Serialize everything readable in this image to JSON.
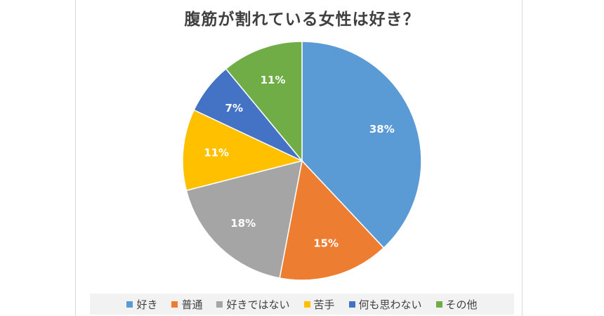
{
  "chart_data": {
    "type": "pie",
    "title": "腹筋が割れている女性は好き？",
    "legend_position": "bottom",
    "slices": [
      {
        "name": "好き",
        "value": 38,
        "label": "38%",
        "color": "#5b9bd5"
      },
      {
        "name": "普通",
        "value": 15,
        "label": "15%",
        "color": "#ed7d31"
      },
      {
        "name": "好きではない",
        "value": 18,
        "label": "18%",
        "color": "#a5a5a5"
      },
      {
        "name": "苦手",
        "value": 11,
        "label": "11%",
        "color": "#ffc000"
      },
      {
        "name": "何も思わない",
        "value": 7,
        "label": "7%",
        "color": "#4472c4"
      },
      {
        "name": "その他",
        "value": 11,
        "label": "11%",
        "color": "#70ad47"
      }
    ]
  }
}
